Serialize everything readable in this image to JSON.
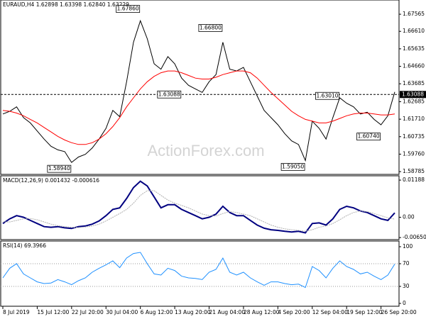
{
  "chart_data": [
    {
      "type": "line",
      "title": "EURAUD,H4 1.62898 1.63398 1.62840 1.63229",
      "watermark": "ActionForex.com",
      "xlim": [
        0,
        57
      ],
      "xticks": [
        {
          "value": 0,
          "label": "8 Jul 2019"
        },
        {
          "value": 5,
          "label": "15 Jul 12:00"
        },
        {
          "value": 10,
          "label": "22 Jul 20:00"
        },
        {
          "value": 15,
          "label": "30 Jul 04:00"
        },
        {
          "value": 20,
          "label": "6 Aug 12:00"
        },
        {
          "value": 25,
          "label": "13 Aug 20:00"
        },
        {
          "value": 30,
          "label": "21 Aug 04:00"
        },
        {
          "value": 35,
          "label": "28 Aug 12:00"
        },
        {
          "value": 40,
          "label": "4 Sep 20:00"
        },
        {
          "value": 45,
          "label": "12 Sep 04:00"
        },
        {
          "value": 50,
          "label": "19 Sep 12:00"
        },
        {
          "value": 55,
          "label": "26 Sep 20:00"
        }
      ],
      "ylim": [
        1.5867,
        1.6824
      ],
      "yticks": [
        1.67565,
        {
          "value": 1.6661,
          "label": "1.66610"
        },
        1.65635,
        {
          "value": 1.6466,
          "label": "1.64660"
        },
        1.63685,
        1.62685,
        {
          "value": 1.6171,
          "label": "1.61710"
        },
        1.60735,
        {
          "value": 1.5976,
          "label": "1.59760"
        },
        1.58785
      ],
      "bid_line": 1.63088,
      "series": [
        {
          "name": "Close",
          "color": "#000000",
          "values": [
            1.62,
            1.6215,
            1.624,
            1.618,
            1.615,
            1.6105,
            1.606,
            1.602,
            1.6,
            1.599,
            1.593,
            1.596,
            1.5975,
            1.601,
            1.606,
            1.612,
            1.622,
            1.6185,
            1.638,
            1.66,
            1.672,
            1.662,
            1.648,
            1.645,
            1.652,
            1.648,
            1.64,
            1.636,
            1.634,
            1.632,
            1.638,
            1.642,
            1.66,
            1.645,
            1.644,
            1.646,
            1.638,
            1.63,
            1.622,
            1.618,
            1.614,
            1.609,
            1.605,
            1.603,
            1.594,
            1.616,
            1.612,
            1.606,
            1.618,
            1.629,
            1.626,
            1.624,
            1.62,
            1.621,
            1.617,
            1.614,
            1.619,
            1.6323
          ]
        },
        {
          "name": "MA",
          "color": "#ff0000",
          "values": [
            1.622,
            1.6215,
            1.6205,
            1.619,
            1.617,
            1.615,
            1.6125,
            1.61,
            1.6075,
            1.6055,
            1.604,
            1.603,
            1.603,
            1.604,
            1.606,
            1.609,
            1.613,
            1.618,
            1.624,
            1.629,
            1.634,
            1.638,
            1.641,
            1.643,
            1.644,
            1.644,
            1.643,
            1.6415,
            1.64,
            1.6395,
            1.6395,
            1.6405,
            1.642,
            1.643,
            1.644,
            1.644,
            1.643,
            1.64,
            1.636,
            1.632,
            1.6285,
            1.625,
            1.6215,
            1.619,
            1.617,
            1.616,
            1.615,
            1.615,
            1.616,
            1.6175,
            1.619,
            1.62,
            1.6205,
            1.6205,
            1.62,
            1.6195,
            1.6195,
            1.62
          ]
        }
      ],
      "annotations": [
        {
          "label": "1.67860",
          "value": 1.6786,
          "at": 20
        },
        {
          "label": "1.66800",
          "value": 1.668,
          "at": 32
        },
        {
          "label": "1.63088",
          "value": 1.63088,
          "at": 26
        },
        {
          "label": "1.63010",
          "value": 1.6301,
          "at": 49
        },
        {
          "label": "1.60740",
          "value": 1.6074,
          "at": 55
        },
        {
          "label": "1.59050",
          "value": 1.5905,
          "at": 44
        },
        {
          "label": "1.58940",
          "value": 1.5894,
          "at": 10
        }
      ]
    },
    {
      "type": "line",
      "title": "MACD(12,26,9) 0.001432 -0.000616",
      "ylim": [
        -0.0067,
        0.0128
      ],
      "yticks": [
        {
          "value": 0.01188,
          "label": "0.01188"
        },
        {
          "value": 0,
          "label": "0.00"
        },
        -0.006502
      ],
      "series": [
        {
          "name": "MACD",
          "color": "#000080",
          "values": [
            -0.002,
            -0.0005,
            0.0005,
            0,
            -0.001,
            -0.002,
            -0.003,
            -0.0032,
            -0.003,
            -0.0034,
            -0.0036,
            -0.003,
            -0.0028,
            -0.0022,
            -0.0012,
            0.0005,
            0.0025,
            0.003,
            0.006,
            0.0095,
            0.0115,
            0.01,
            0.0065,
            0.003,
            0.004,
            0.004,
            0.0025,
            0.0015,
            0.0005,
            -0.0005,
            0,
            0.001,
            0.0035,
            0.0015,
            0.0005,
            0.0005,
            -0.001,
            -0.0025,
            -0.0035,
            -0.004,
            -0.0042,
            -0.0045,
            -0.0047,
            -0.0045,
            -0.005,
            -0.002,
            -0.0018,
            -0.0025,
            -0.0005,
            0.0025,
            0.0035,
            0.003,
            0.002,
            0.0015,
            0.0005,
            -0.0005,
            -0.001,
            0.0014
          ]
        },
        {
          "name": "Signal",
          "color": "#b0b0b0",
          "values": [
            -0.0015,
            -0.0015,
            -0.001,
            -0.0005,
            -0.0004,
            -0.0008,
            -0.0015,
            -0.0022,
            -0.0027,
            -0.003,
            -0.0032,
            -0.0033,
            -0.0031,
            -0.0028,
            -0.0022,
            -0.0012,
            0,
            0.0012,
            0.0025,
            0.0045,
            0.007,
            0.0085,
            0.0085,
            0.007,
            0.0055,
            0.0045,
            0.0038,
            0.003,
            0.002,
            0.001,
            0.0005,
            0.0004,
            0.0012,
            0.0018,
            0.0015,
            0.001,
            0.0005,
            -0.0005,
            -0.0015,
            -0.0025,
            -0.0032,
            -0.0037,
            -0.004,
            -0.0042,
            -0.0045,
            -0.004,
            -0.0032,
            -0.0028,
            -0.002,
            -0.0008,
            0.0005,
            0.0015,
            0.002,
            0.0018,
            0.0012,
            0.0005,
            -0.0002,
            -0.0006
          ]
        }
      ]
    },
    {
      "type": "line",
      "title": "RSI(14) 69.3966",
      "ylim": [
        0,
        100
      ],
      "yticks": [
        100,
        70,
        30,
        0
      ],
      "series": [
        {
          "name": "RSI",
          "color": "#1e90ff",
          "values": [
            45,
            62,
            70,
            52,
            45,
            38,
            35,
            36,
            42,
            38,
            33,
            40,
            45,
            55,
            62,
            68,
            75,
            63,
            80,
            88,
            90,
            70,
            52,
            50,
            62,
            58,
            48,
            45,
            44,
            42,
            55,
            60,
            80,
            55,
            50,
            55,
            45,
            38,
            32,
            38,
            38,
            35,
            33,
            34,
            28,
            65,
            58,
            45,
            62,
            75,
            65,
            60,
            52,
            55,
            48,
            42,
            50,
            69.3966
          ]
        }
      ]
    }
  ]
}
